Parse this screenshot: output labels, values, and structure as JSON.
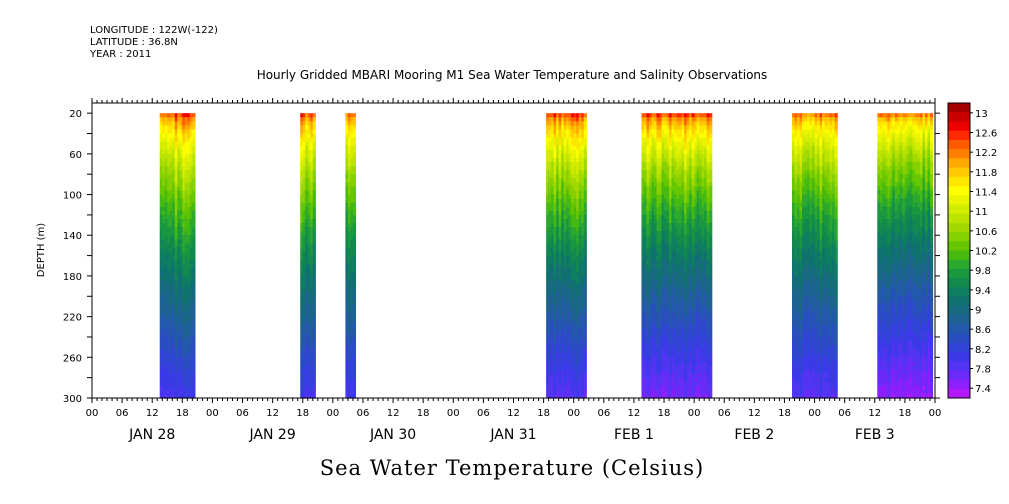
{
  "header": {
    "longitude": "LONGITUDE : 122W(-122)",
    "latitude": "LATITUDE : 36.8N",
    "year": "YEAR : 2011"
  },
  "chart_data": {
    "type": "heatmap",
    "title": "Hourly Gridded MBARI Mooring M1 Sea Water Temperature and Salinity Observations",
    "subtitle": "Sea Water Temperature (Celsius)",
    "ylabel": "DEPTH (m)",
    "xlabel": "",
    "x_start": "JAN 28 00:00",
    "x_range_hours": [
      0,
      168
    ],
    "ylim": [
      300,
      10
    ],
    "y_ticks": [
      20,
      60,
      100,
      140,
      180,
      220,
      260,
      300
    ],
    "x_hour_ticks": [
      "00",
      "06",
      "12",
      "18",
      "00",
      "06",
      "12",
      "18",
      "00",
      "06",
      "12",
      "18",
      "00",
      "06",
      "12",
      "18",
      "00",
      "06",
      "12",
      "18",
      "00",
      "06",
      "12",
      "18",
      "00",
      "06",
      "12",
      "18",
      "00"
    ],
    "x_day_labels": [
      "JAN 28",
      "JAN 29",
      "JAN 30",
      "JAN 31",
      "FEB  1",
      "FEB  2",
      "FEB  3"
    ],
    "colorbar": {
      "labels": [
        "13",
        "12.6",
        "12.2",
        "11.8",
        "11.4",
        "11",
        "10.6",
        "10.2",
        "9.8",
        "9.4",
        "9",
        "8.6",
        "8.2",
        "7.8",
        "7.4"
      ],
      "min": 7.2,
      "max": 13.2,
      "step": 0.2,
      "colors": [
        "#a40000",
        "#c80000",
        "#ec0000",
        "#ff2a00",
        "#ff5a00",
        "#ff8000",
        "#ffa800",
        "#ffc800",
        "#ffe600",
        "#ffff00",
        "#eaf400",
        "#d4ec00",
        "#bce400",
        "#a2da00",
        "#86d000",
        "#66c600",
        "#46ba10",
        "#2ca82e",
        "#1a9840",
        "#128a4e",
        "#0e7e60",
        "#10726e",
        "#186a80",
        "#1e6294",
        "#2458aa",
        "#2a4ec0",
        "#3244d6",
        "#3c3ae8",
        "#5234f2",
        "#6c2af8",
        "#8c20fc",
        "#b21afe"
      ]
    },
    "segments": [
      {
        "start_hour": 13.5,
        "end_hour": 20.5,
        "surface_temp": 12.8,
        "bottom_temp": 8.0
      },
      {
        "start_hour": 41.5,
        "end_hour": 44.5,
        "surface_temp": 12.7,
        "bottom_temp": 8.0
      },
      {
        "start_hour": 50.5,
        "end_hour": 52.5,
        "surface_temp": 12.7,
        "bottom_temp": 8.0
      },
      {
        "start_hour": 90.5,
        "end_hour": 98.5,
        "surface_temp": 12.8,
        "bottom_temp": 7.8
      },
      {
        "start_hour": 109.5,
        "end_hour": 123.5,
        "surface_temp": 12.8,
        "bottom_temp": 7.6
      },
      {
        "start_hour": 139.5,
        "end_hour": 148.5,
        "surface_temp": 12.5,
        "bottom_temp": 7.8
      },
      {
        "start_hour": 156.5,
        "end_hour": 167.5,
        "surface_temp": 12.4,
        "bottom_temp": 7.4
      }
    ]
  }
}
